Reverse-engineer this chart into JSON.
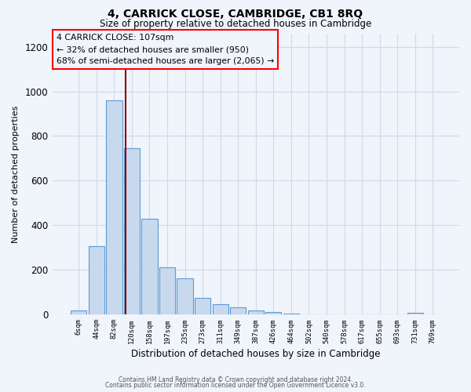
{
  "title": "4, CARRICK CLOSE, CAMBRIDGE, CB1 8RQ",
  "subtitle": "Size of property relative to detached houses in Cambridge",
  "bar_labels": [
    "6sqm",
    "44sqm",
    "82sqm",
    "120sqm",
    "158sqm",
    "197sqm",
    "235sqm",
    "273sqm",
    "311sqm",
    "349sqm",
    "387sqm",
    "426sqm",
    "464sqm",
    "502sqm",
    "540sqm",
    "578sqm",
    "617sqm",
    "655sqm",
    "693sqm",
    "731sqm",
    "769sqm"
  ],
  "bar_values": [
    20,
    305,
    960,
    745,
    430,
    210,
    163,
    75,
    47,
    33,
    20,
    10,
    5,
    2,
    2,
    1,
    1,
    0,
    0,
    8,
    0
  ],
  "bar_color": "#c9d9ed",
  "bar_edge_color": "#5b9bd5",
  "xlabel": "Distribution of detached houses by size in Cambridge",
  "ylabel": "Number of detached properties",
  "ylim": [
    0,
    1260
  ],
  "yticks": [
    0,
    200,
    400,
    600,
    800,
    1000,
    1200
  ],
  "annotation_line1": "4 CARRICK CLOSE: 107sqm",
  "annotation_line2": "← 32% of detached houses are smaller (950)",
  "annotation_line3": "68% of semi-detached houses are larger (2,065) →",
  "grid_color": "#d0d8e8",
  "bg_color": "#f0f4fb",
  "footer1": "Contains HM Land Registry data © Crown copyright and database right 2024.",
  "footer2": "Contains public sector information licensed under the Open Government Licence v3.0."
}
